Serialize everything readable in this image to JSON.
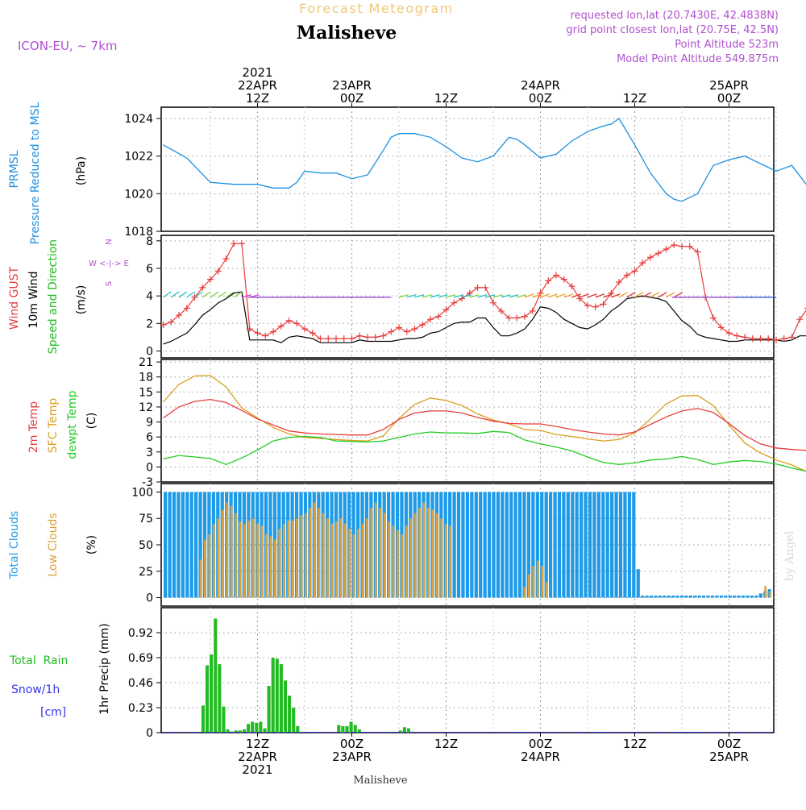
{
  "header": {
    "top_title": "Forecast Meteogram",
    "location": "Malisheve",
    "model": "ICON-EU, ~ 7km",
    "requested": "requested lon,lat (20.7430E, 42.4838N)",
    "grid_point": "grid point closest lon,lat (20.75E, 42.5N)",
    "point_altitude": "Point Altitude 523m",
    "model_altitude": "Model Point Altitude 549.875m",
    "footer_location": "Malisheve",
    "signature": "by Angel"
  },
  "colors": {
    "pressure": "#1e90e0",
    "gust": "#e83c3c",
    "wind": "#000000",
    "direction_label": "#22bb22",
    "temp2m": "#e83c3c",
    "sfc": "#d9a020",
    "dewpt": "#22cc22",
    "total_clouds": "#1e9be8",
    "low_clouds": "#d9a040",
    "rain": "#22bb22",
    "snow": "#3333ee",
    "header_purple": "#b04fd0",
    "header_orange": "#f0c878"
  },
  "time_axis": {
    "top_labels": [
      {
        "h": 12,
        "lines": [
          "2021",
          "22APR",
          "12Z"
        ]
      },
      {
        "h": 24,
        "lines": [
          "23APR",
          "00Z"
        ]
      },
      {
        "h": 36,
        "lines": [
          "12Z"
        ]
      },
      {
        "h": 48,
        "lines": [
          "24APR",
          "00Z"
        ]
      },
      {
        "h": 60,
        "lines": [
          "12Z"
        ]
      },
      {
        "h": 72,
        "lines": [
          "25APR",
          "00Z"
        ]
      }
    ],
    "bottom_labels": [
      {
        "h": 12,
        "lines": [
          "12Z",
          "22APR",
          "2021"
        ]
      },
      {
        "h": 24,
        "lines": [
          "00Z",
          "23APR"
        ]
      },
      {
        "h": 36,
        "lines": [
          "12Z"
        ]
      },
      {
        "h": 48,
        "lines": [
          "00Z",
          "24APR"
        ]
      },
      {
        "h": 60,
        "lines": [
          "12Z"
        ]
      },
      {
        "h": 72,
        "lines": [
          "00Z",
          "25APR"
        ]
      }
    ]
  },
  "panels": {
    "pressure": {
      "labels": [
        "PRMSL",
        "Pressure Reduced to MSL"
      ],
      "unit": "(hPa)",
      "ticks": [
        "1024",
        "1022",
        "1020",
        "1018"
      ]
    },
    "wind": {
      "labels": [
        "Wind GUST",
        "10m Wind",
        "Speed and Direction"
      ],
      "unit": "(m/s)",
      "ticks": [
        "8",
        "6",
        "4",
        "2",
        "0"
      ],
      "compass_ns": "N",
      "compass_we": "W <-|-> E",
      "compass_s": "S"
    },
    "temperature": {
      "labels": [
        "2m Temp",
        "SFC Temp",
        "dewpt Temp"
      ],
      "unit": "(C)",
      "ticks": [
        "21",
        "18",
        "15",
        "12",
        "9",
        "6",
        "3",
        "0",
        "-3"
      ]
    },
    "clouds": {
      "labels": [
        "Total Clouds",
        "Low Clouds"
      ],
      "unit": "(%)",
      "ticks": [
        "100",
        "75",
        "50",
        "25",
        "0"
      ]
    },
    "precip": {
      "label_rain": "Total  Rain",
      "label_snow": "Snow/1h",
      "label_cm": "[cm]",
      "unit": "1hr Precip (mm)",
      "ticks": [
        "0.92",
        "0.69",
        "0.46",
        "0.23",
        "0"
      ]
    }
  },
  "chart_data": [
    {
      "type": "line",
      "title": "PRMSL Pressure Reduced to MSL",
      "ylabel": "hPa",
      "ylim": [
        1018,
        1024.6
      ],
      "x": [
        0,
        3,
        6,
        9,
        12,
        14,
        16,
        17,
        18,
        20,
        22,
        24,
        26,
        28,
        29,
        30,
        32,
        34,
        36,
        38,
        40,
        42,
        44,
        45,
        46,
        48,
        50,
        52,
        54,
        56,
        57,
        58,
        60,
        62,
        64,
        65,
        66,
        68,
        70,
        72,
        74,
        76,
        78,
        80,
        82
      ],
      "series": [
        {
          "name": "PRMSL",
          "values": [
            1022.6,
            1021.9,
            1020.6,
            1020.5,
            1020.5,
            1020.3,
            1020.3,
            1020.6,
            1021.2,
            1021.1,
            1021.1,
            1020.8,
            1021.0,
            1022.3,
            1023.0,
            1023.2,
            1023.2,
            1023.0,
            1022.5,
            1021.9,
            1021.7,
            1022.0,
            1023.0,
            1022.9,
            1022.6,
            1021.9,
            1022.1,
            1022.8,
            1023.3,
            1023.6,
            1023.7,
            1024.0,
            1022.6,
            1021.1,
            1020.0,
            1019.7,
            1019.6,
            1020.0,
            1021.5,
            1021.8,
            1022.0,
            1021.6,
            1021.2,
            1021.5,
            1020.4
          ]
        }
      ]
    },
    {
      "type": "line",
      "title": "Wind GUST / 10m Wind Speed and Direction",
      "ylabel": "m/s",
      "ylim": [
        0,
        8
      ],
      "x": [
        0,
        1,
        2,
        3,
        4,
        5,
        6,
        7,
        8,
        9,
        10,
        11,
        12,
        13,
        14,
        15,
        16,
        17,
        18,
        19,
        20,
        21,
        22,
        23,
        24,
        25,
        26,
        27,
        28,
        29,
        30,
        31,
        32,
        33,
        34,
        35,
        36,
        37,
        38,
        39,
        40,
        41,
        42,
        43,
        44,
        45,
        46,
        47,
        48,
        49,
        50,
        51,
        52,
        53,
        54,
        55,
        56,
        57,
        58,
        59,
        60,
        61,
        62,
        63,
        64,
        65,
        66,
        67,
        68,
        69,
        70,
        71,
        72,
        73,
        74,
        75,
        76,
        77,
        78,
        79,
        80,
        81,
        82
      ],
      "series": [
        {
          "name": "Wind GUST",
          "values": [
            1.9,
            2.1,
            2.6,
            3.1,
            3.9,
            4.6,
            5.2,
            5.8,
            6.7,
            7.8,
            7.8,
            1.6,
            1.3,
            1.1,
            1.4,
            1.8,
            2.2,
            2.0,
            1.6,
            1.3,
            0.9,
            0.9,
            0.9,
            0.9,
            0.9,
            1.1,
            1.0,
            1.0,
            1.1,
            1.4,
            1.7,
            1.4,
            1.6,
            1.9,
            2.3,
            2.5,
            3.0,
            3.5,
            3.8,
            4.2,
            4.6,
            4.6,
            3.5,
            2.9,
            2.4,
            2.4,
            2.5,
            2.9,
            4.2,
            5.1,
            5.5,
            5.2,
            4.7,
            3.8,
            3.3,
            3.2,
            3.4,
            4.2,
            5.0,
            5.5,
            5.8,
            6.4,
            6.8,
            7.1,
            7.4,
            7.7,
            7.6,
            7.6,
            7.2,
            3.9,
            2.4,
            1.7,
            1.3,
            1.1,
            1.0,
            0.9,
            0.9,
            0.9,
            0.8,
            0.9,
            1.0,
            2.3,
            3.1
          ]
        },
        {
          "name": "10m Wind",
          "values": [
            0.5,
            0.7,
            1.0,
            1.3,
            1.9,
            2.6,
            3.0,
            3.5,
            3.8,
            4.2,
            4.3,
            0.8,
            0.8,
            0.8,
            0.8,
            0.6,
            1.0,
            1.1,
            1.0,
            0.9,
            0.6,
            0.6,
            0.6,
            0.6,
            0.6,
            0.8,
            0.7,
            0.7,
            0.7,
            0.7,
            0.8,
            0.9,
            0.9,
            1.0,
            1.3,
            1.4,
            1.7,
            2.0,
            2.1,
            2.1,
            2.4,
            2.4,
            1.7,
            1.1,
            1.1,
            1.3,
            1.6,
            2.3,
            3.2,
            3.1,
            2.8,
            2.3,
            2.0,
            1.7,
            1.6,
            1.9,
            2.3,
            2.9,
            3.3,
            3.8,
            3.9,
            4.0,
            3.9,
            3.8,
            3.6,
            2.9,
            2.2,
            1.8,
            1.2,
            1.0,
            0.9,
            0.8,
            0.7,
            0.7,
            0.8,
            0.8,
            0.8,
            0.8,
            0.8,
            0.7,
            0.8,
            1.1,
            1.1
          ]
        }
      ]
    },
    {
      "type": "line",
      "title": "2m Temp / SFC Temp / dewpt Temp",
      "ylabel": "C",
      "ylim": [
        -3,
        21
      ],
      "x": [
        0,
        2,
        4,
        6,
        8,
        10,
        12,
        14,
        16,
        18,
        20,
        22,
        24,
        26,
        28,
        30,
        32,
        34,
        36,
        38,
        40,
        42,
        44,
        46,
        48,
        50,
        52,
        54,
        56,
        58,
        60,
        62,
        64,
        66,
        68,
        70,
        72,
        74,
        76,
        78,
        80,
        82
      ],
      "series": [
        {
          "name": "2m Temp",
          "values": [
            9.8,
            12.0,
            13.1,
            13.5,
            12.9,
            11.3,
            9.6,
            8.4,
            7.2,
            6.8,
            6.6,
            6.5,
            6.4,
            6.4,
            7.5,
            9.5,
            10.8,
            11.2,
            11.2,
            10.8,
            9.9,
            9.2,
            8.7,
            8.6,
            8.6,
            8.1,
            7.5,
            7.0,
            6.6,
            6.4,
            7.0,
            8.5,
            10.0,
            11.2,
            11.7,
            10.9,
            8.7,
            6.3,
            4.6,
            3.8,
            3.5,
            3.3
          ]
        },
        {
          "name": "SFC Temp",
          "values": [
            13.0,
            16.5,
            18.2,
            18.3,
            16.0,
            11.8,
            9.8,
            7.9,
            6.6,
            5.9,
            5.7,
            5.5,
            5.3,
            5.2,
            6.2,
            9.7,
            12.5,
            13.8,
            13.3,
            12.3,
            10.6,
            9.4,
            8.6,
            7.5,
            7.3,
            6.5,
            6.1,
            5.6,
            5.2,
            5.5,
            6.8,
            9.6,
            12.6,
            14.2,
            14.3,
            12.3,
            8.4,
            4.8,
            2.8,
            1.4,
            0.4,
            -1.0
          ]
        },
        {
          "name": "dewpt Temp",
          "values": [
            1.6,
            2.3,
            2.0,
            1.7,
            0.5,
            1.8,
            3.4,
            5.2,
            5.9,
            6.1,
            5.9,
            5.2,
            5.1,
            5.0,
            5.2,
            5.9,
            6.6,
            7.0,
            6.8,
            6.8,
            6.7,
            7.1,
            6.9,
            5.4,
            4.6,
            4.0,
            3.2,
            2.0,
            0.9,
            0.5,
            0.8,
            1.4,
            1.6,
            2.1,
            1.5,
            0.5,
            1.0,
            1.3,
            1.1,
            0.6,
            -0.2,
            -0.9
          ]
        }
      ]
    },
    {
      "type": "bar",
      "title": "Total Clouds / Low Clouds",
      "ylabel": "%",
      "ylim": [
        0,
        100
      ],
      "series": [
        {
          "name": "Total Clouds",
          "values": [
            100,
            100,
            100,
            100,
            100,
            100,
            100,
            100,
            100,
            100,
            100,
            100,
            100,
            100,
            100,
            100,
            100,
            100,
            100,
            100,
            100,
            100,
            100,
            100,
            100,
            100,
            100,
            100,
            100,
            100,
            100,
            100,
            100,
            100,
            100,
            100,
            100,
            100,
            100,
            100,
            100,
            100,
            100,
            100,
            100,
            100,
            100,
            100,
            100,
            100,
            100,
            100,
            100,
            100,
            100,
            100,
            100,
            100,
            100,
            100,
            100,
            100,
            100,
            100,
            100,
            100,
            100,
            100,
            100,
            100,
            100,
            100,
            100,
            100,
            100,
            100,
            100,
            100,
            100,
            100,
            100,
            100,
            100,
            100,
            100,
            100,
            100,
            100,
            100,
            100,
            100,
            100,
            100,
            100,
            100,
            100,
            100,
            100,
            100,
            100,
            100,
            100,
            100,
            100,
            100,
            100,
            100,
            100,
            27,
            2,
            2,
            2,
            2,
            2,
            2,
            2,
            2,
            2,
            2,
            2,
            2,
            2,
            2,
            2,
            2,
            2,
            2,
            2,
            2,
            2,
            2,
            2,
            2,
            2,
            2,
            2,
            4,
            6,
            8
          ]
        },
        {
          "name": "Low Clouds",
          "values": [
            0,
            0,
            0,
            0,
            0,
            0,
            0,
            0,
            36,
            55,
            60,
            70,
            75,
            83,
            90,
            87,
            80,
            72,
            70,
            73,
            75,
            70,
            68,
            60,
            58,
            55,
            65,
            70,
            73,
            73,
            75,
            78,
            80,
            85,
            90,
            85,
            80,
            75,
            70,
            72,
            75,
            70,
            65,
            60,
            65,
            70,
            75,
            85,
            90,
            85,
            80,
            72,
            68,
            64,
            60,
            68,
            75,
            80,
            85,
            90,
            85,
            83,
            80,
            75,
            70,
            68,
            0,
            0,
            0,
            0,
            0,
            0,
            0,
            0,
            0,
            0,
            0,
            0,
            0,
            0,
            0,
            0,
            10,
            22,
            30,
            35,
            30,
            15,
            0,
            0,
            0,
            0,
            0,
            0,
            0,
            0,
            0,
            0,
            0,
            0,
            0,
            0,
            0,
            0,
            0,
            0,
            0,
            0,
            0,
            0,
            0,
            0,
            0,
            0,
            0,
            0,
            0,
            0,
            0,
            0,
            0,
            0,
            0,
            0,
            0,
            0,
            0,
            0,
            0,
            0,
            0,
            0,
            0,
            0,
            0,
            0,
            0,
            11,
            6
          ]
        }
      ]
    },
    {
      "type": "bar",
      "title": "1hr Precip",
      "ylabel": "1hr Precip (mm)",
      "ylim": [
        0,
        1.15
      ],
      "series": [
        {
          "name": "Total Rain",
          "values": [
            0,
            0,
            0,
            0,
            0,
            0,
            0,
            0,
            0,
            0.25,
            0.62,
            0.72,
            1.05,
            0.63,
            0.24,
            0.03,
            0.01,
            0.02,
            0.02,
            0.03,
            0.08,
            0.1,
            0.09,
            0.1,
            0.04,
            0.43,
            0.69,
            0.68,
            0.63,
            0.48,
            0.34,
            0.23,
            0.06,
            0,
            0,
            0,
            0,
            0,
            0,
            0,
            0,
            0,
            0.07,
            0.06,
            0.06,
            0.1,
            0.07,
            0.03,
            0,
            0,
            0,
            0,
            0,
            0,
            0,
            0,
            0,
            0.02,
            0.05,
            0.04,
            0,
            0,
            0,
            0,
            0,
            0,
            0,
            0,
            0,
            0,
            0,
            0,
            0,
            0,
            0,
            0,
            0,
            0,
            0,
            0,
            0,
            0,
            0,
            0,
            0,
            0,
            0,
            0,
            0,
            0,
            0,
            0,
            0,
            0,
            0,
            0,
            0,
            0,
            0,
            0,
            0,
            0,
            0,
            0,
            0,
            0,
            0,
            0,
            0,
            0,
            0,
            0,
            0,
            0,
            0,
            0,
            0,
            0,
            0,
            0,
            0,
            0,
            0,
            0,
            0,
            0,
            0,
            0,
            0,
            0,
            0,
            0,
            0,
            0,
            0,
            0,
            0,
            0,
            0,
            0,
            0,
            0,
            0,
            0,
            0,
            0,
            0,
            0
          ]
        }
      ]
    }
  ]
}
